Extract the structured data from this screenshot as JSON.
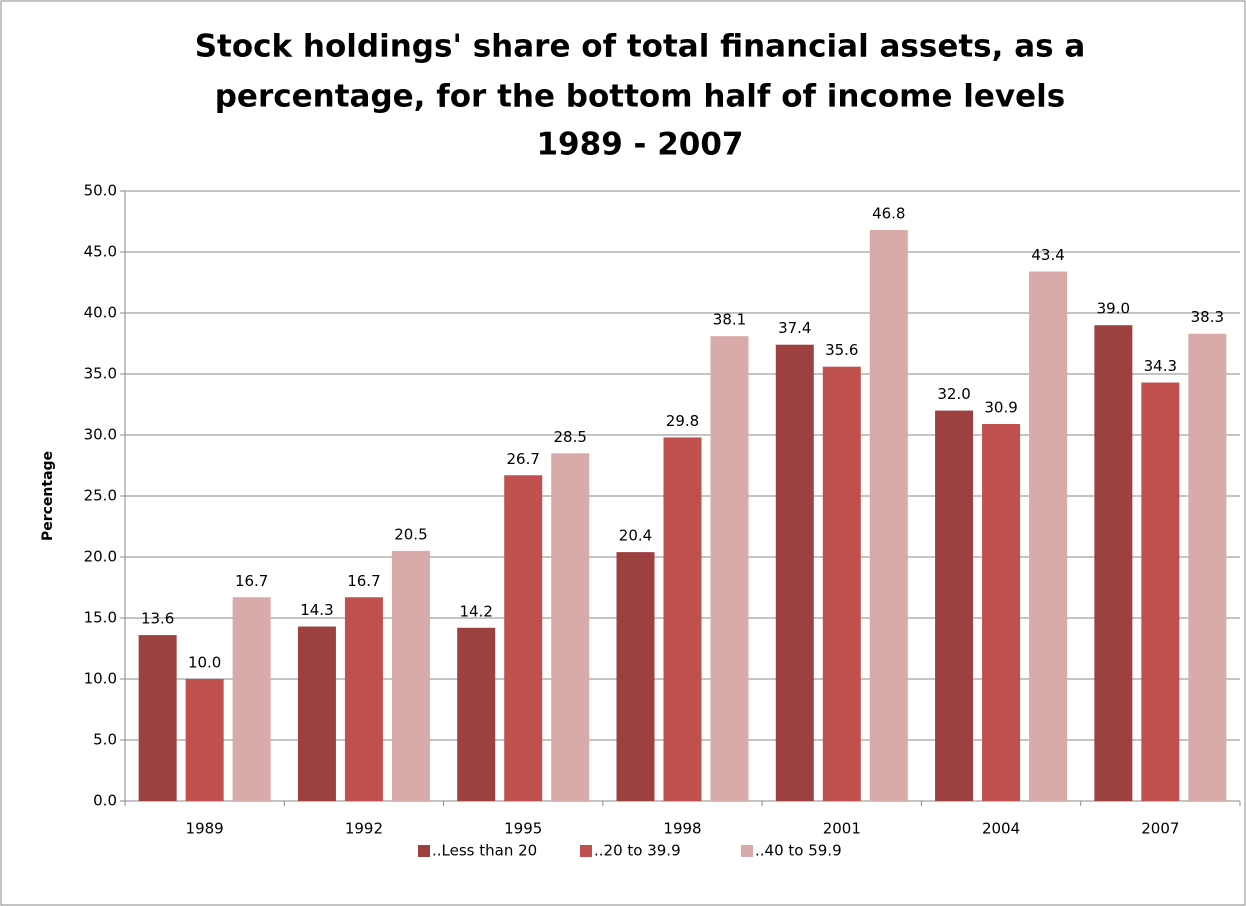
{
  "chart_data": {
    "type": "bar",
    "title": [
      "Stock holdings' share of total financial assets, as a",
      "percentage, for the bottom half of income levels",
      "1989 - 2007"
    ],
    "y_label": "Percentage",
    "categories": [
      "1989",
      "1992",
      "1995",
      "1998",
      "2001",
      "2004",
      "2007"
    ],
    "series": [
      {
        "name": "..Less than 20",
        "color": "#9c4140",
        "values": [
          13.6,
          14.3,
          14.2,
          20.4,
          37.4,
          32.0,
          39.0
        ],
        "value_labels": [
          "13.6",
          "14.3",
          "14.2",
          "20.4",
          "37.4",
          "32.0",
          "39.0"
        ]
      },
      {
        "name": "..20 to 39.9",
        "color": "#c0504d",
        "values": [
          10.0,
          16.7,
          26.7,
          29.8,
          35.6,
          30.9,
          34.3
        ],
        "value_labels": [
          "10.0",
          "16.7",
          "26.7",
          "29.8",
          "35.6",
          "30.9",
          "34.3"
        ]
      },
      {
        "name": "..40 to 59.9",
        "color": "#d9aaaa",
        "values": [
          16.7,
          20.5,
          28.5,
          38.1,
          46.8,
          43.4,
          38.3
        ],
        "value_labels": [
          "16.7",
          "20.5",
          "28.5",
          "38.1",
          "46.8",
          "43.4",
          "38.3"
        ]
      }
    ],
    "ylim": [
      0,
      50
    ],
    "yticks": [
      {
        "value": 0,
        "label": "0.0"
      },
      {
        "value": 5,
        "label": "5.0"
      },
      {
        "value": 10,
        "label": "10.0"
      },
      {
        "value": 15,
        "label": "15.0"
      },
      {
        "value": 20,
        "label": "20.0"
      },
      {
        "value": 25,
        "label": "25.0"
      },
      {
        "value": 30,
        "label": "30.0"
      },
      {
        "value": 35,
        "label": "35.0"
      },
      {
        "value": 40,
        "label": "40.0"
      },
      {
        "value": 45,
        "label": "45.0"
      },
      {
        "value": 50,
        "label": "50.0"
      }
    ],
    "grid": true,
    "legend": "bottom"
  }
}
